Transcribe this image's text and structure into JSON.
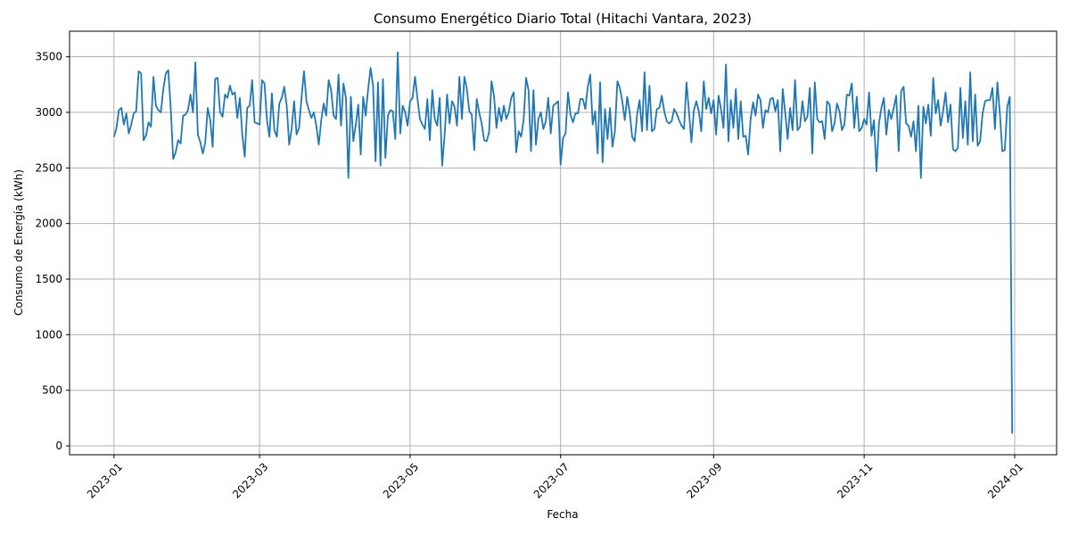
{
  "chart_data": {
    "type": "line",
    "title": "Consumo Energético Diario Total (Hitachi Vantara, 2023)",
    "xlabel": "Fecha",
    "ylabel": "Consumo de Energía (kWh)",
    "xlim": [
      "2022-12-14",
      "2024-01-18"
    ],
    "ylim": [
      -80,
      3730
    ],
    "grid": true,
    "color": "#1f77b4",
    "xticks": [
      "2023-01",
      "2023-03",
      "2023-05",
      "2023-07",
      "2023-09",
      "2023-11",
      "2024-01"
    ],
    "yticks": [
      0,
      500,
      1000,
      1500,
      2000,
      2500,
      3000,
      3500
    ],
    "series": [
      {
        "x_start": "2023-01-01",
        "x_end": "2023-12-31",
        "values": [
          2780,
          2860,
          3020,
          3040,
          2890,
          2990,
          2810,
          2890,
          2990,
          3010,
          3370,
          3350,
          2750,
          2790,
          2910,
          2870,
          3320,
          3060,
          3020,
          3000,
          3210,
          3350,
          3380,
          3040,
          2580,
          2640,
          2750,
          2720,
          2970,
          2980,
          3020,
          3160,
          3000,
          3450,
          2800,
          2730,
          2630,
          2730,
          3040,
          2930,
          2690,
          3300,
          3310,
          3000,
          2960,
          3160,
          3130,
          3240,
          3160,
          3180,
          2950,
          3130,
          2800,
          2600,
          3040,
          3060,
          3290,
          2910,
          2900,
          2890,
          3290,
          3260,
          2930,
          2780,
          3170,
          2840,
          2780,
          3080,
          3130,
          3230,
          3060,
          2710,
          2850,
          3100,
          2800,
          2860,
          3130,
          3370,
          3100,
          3020,
          2950,
          3000,
          2880,
          2710,
          2930,
          3080,
          2970,
          3290,
          3200,
          2970,
          2940,
          3340,
          2880,
          3260,
          3130,
          2410,
          3140,
          2740,
          2890,
          3070,
          2620,
          3140,
          2970,
          3210,
          3400,
          3240,
          2560,
          3270,
          2520,
          3300,
          2590,
          2970,
          3020,
          3010,
          2760,
          3540,
          2810,
          3060,
          3000,
          2880,
          3100,
          3130,
          3320,
          3120,
          2940,
          2890,
          2850,
          3120,
          2750,
          3200,
          2940,
          2880,
          3130,
          2520,
          2800,
          3160,
          2900,
          3100,
          3050,
          2880,
          3320,
          2940,
          3320,
          3210,
          3010,
          2980,
          2660,
          3120,
          3000,
          2900,
          2750,
          2740,
          2820,
          3280,
          3150,
          2860,
          3040,
          2920,
          3060,
          2940,
          3000,
          3130,
          3180,
          2640,
          2830,
          2780,
          2930,
          3310,
          3200,
          2650,
          3200,
          2710,
          2940,
          3000,
          2850,
          2920,
          3130,
          2810,
          3060,
          3080,
          3100,
          2530,
          2770,
          2810,
          3180,
          2980,
          2910,
          2990,
          2990,
          3120,
          3120,
          3030,
          3230,
          3340,
          2890,
          3010,
          2630,
          3270,
          2550,
          3030,
          2760,
          3040,
          2690,
          2830,
          3280,
          3220,
          3100,
          2930,
          3140,
          3000,
          2780,
          2740,
          2980,
          3110,
          2830,
          3360,
          2840,
          3240,
          2830,
          2850,
          3030,
          3040,
          3150,
          3010,
          2920,
          2900,
          2920,
          3030,
          2990,
          2930,
          2880,
          2850,
          3270,
          3010,
          2730,
          3020,
          3100,
          3010,
          2830,
          3280,
          3030,
          3130,
          2990,
          3110,
          2800,
          3150,
          3030,
          2860,
          3430,
          2740,
          3110,
          2860,
          3210,
          2760,
          3100,
          2780,
          2790,
          2620,
          2940,
          3090,
          2970,
          3160,
          3110,
          2860,
          3020,
          3000,
          3120,
          3130,
          3010,
          3110,
          2650,
          3210,
          3000,
          2760,
          3040,
          2840,
          3290,
          2840,
          2870,
          3100,
          2920,
          2960,
          3220,
          2630,
          3270,
          2940,
          2910,
          2920,
          2760,
          3100,
          3070,
          2830,
          2900,
          3080,
          3010,
          2840,
          2890,
          3160,
          3150,
          3260,
          2860,
          3140,
          2830,
          2860,
          2940,
          2890,
          3180,
          2790,
          2930,
          2470,
          2900,
          3040,
          3130,
          2800,
          3020,
          2940,
          3040,
          3150,
          2650,
          3190,
          3230,
          2900,
          2880,
          2780,
          2920,
          2650,
          3060,
          2410,
          3050,
          2900,
          3070,
          2790,
          3310,
          2990,
          3110,
          2880,
          3010,
          3180,
          2910,
          3070,
          2670,
          2650,
          2680,
          3220,
          2770,
          3100,
          2710,
          3360,
          2740,
          3160,
          2700,
          2740,
          2990,
          3100,
          3110,
          3110,
          3220,
          2850,
          3270,
          2990,
          2650,
          2660,
          3050,
          3140,
          110
        ]
      }
    ]
  }
}
